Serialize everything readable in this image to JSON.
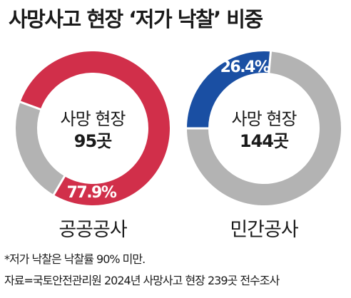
{
  "title": "사망사고 현장 ‘저가 낙찰’ 비중",
  "chart_data": [
    {
      "type": "pie",
      "name": "공공공사",
      "center_label": "사망 현장",
      "center_value": "95곳",
      "values": [
        77.9,
        22.1
      ],
      "highlight_label": "77.9%",
      "colors": [
        "#d12f4a",
        "#b3b3b3"
      ]
    },
    {
      "type": "pie",
      "name": "민간공사",
      "center_label": "사망 현장",
      "center_value": "144곳",
      "values": [
        26.4,
        73.6
      ],
      "highlight_label": "26.4%",
      "colors": [
        "#1a4fa3",
        "#b3b3b3"
      ]
    }
  ],
  "footnotes": [
    "*저가 낙찰은 낙찰률 90% 미만.",
    "자료=국토안전관리원 2024년 사망사고 현장 239곳 전수조사"
  ]
}
